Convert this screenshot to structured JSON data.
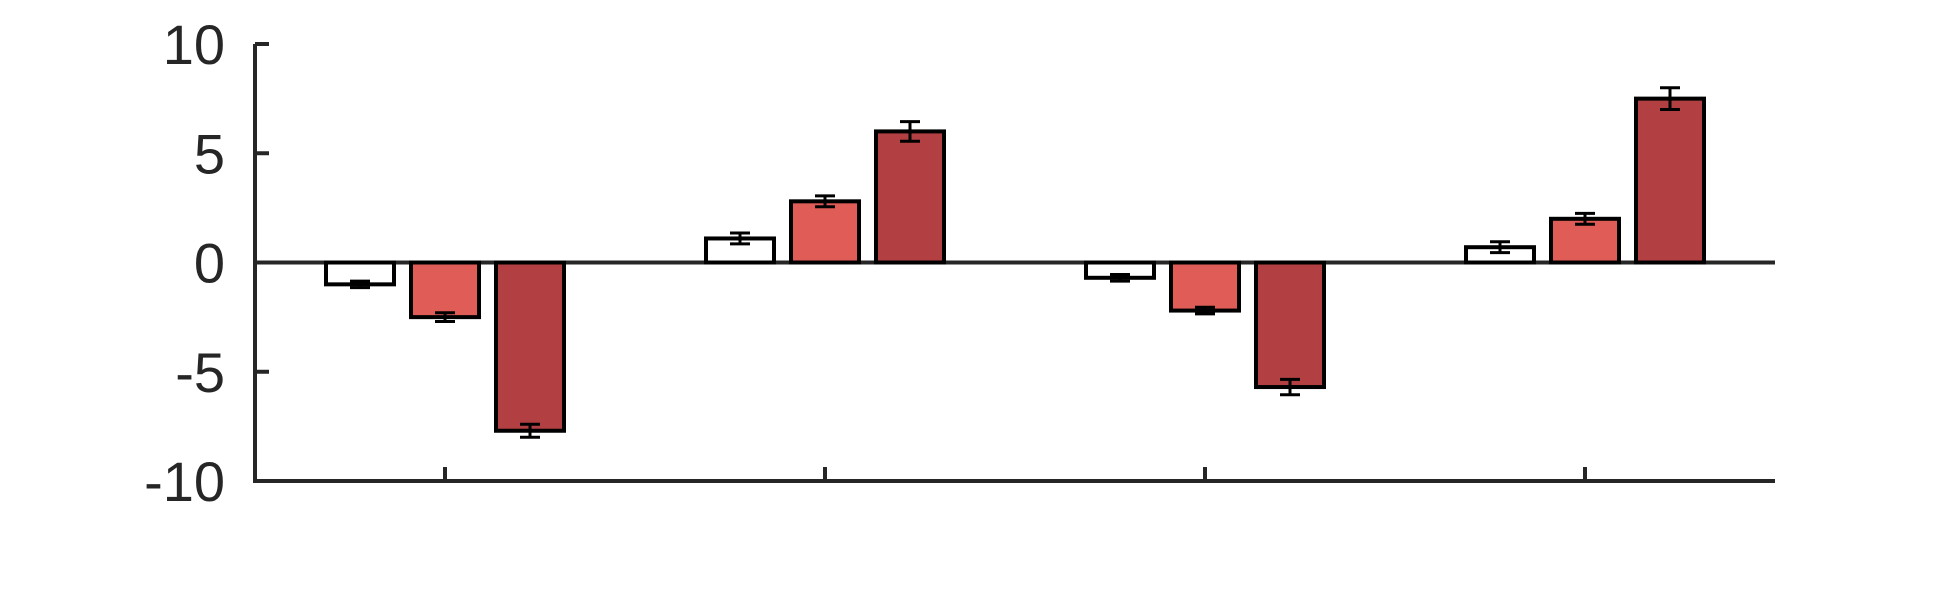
{
  "chart_data": {
    "type": "bar",
    "title": "",
    "xlabel": "",
    "ylabel": "",
    "ylim": [
      -10,
      10
    ],
    "yticks": [
      10,
      5,
      0,
      -5,
      -10
    ],
    "ytick_labels": [
      "10",
      "5",
      "0",
      "-5",
      "-10"
    ],
    "x_groups": 4,
    "grid": false,
    "legend": "none",
    "series": [
      {
        "values": [
          -1.0,
          1.1,
          -0.7,
          0.7
        ],
        "errors": [
          0.15,
          0.25,
          0.15,
          0.25
        ],
        "color": "#ffffff"
      },
      {
        "values": [
          -2.5,
          2.8,
          -2.2,
          2.0
        ],
        "errors": [
          0.2,
          0.25,
          0.15,
          0.25
        ],
        "color": "#e05d57"
      },
      {
        "values": [
          -7.7,
          6.0,
          -5.7,
          7.5
        ],
        "errors": [
          0.3,
          0.45,
          0.35,
          0.5
        ],
        "color": "#b24042"
      }
    ],
    "axis_color": "#262626",
    "edge_color": "#000000"
  }
}
